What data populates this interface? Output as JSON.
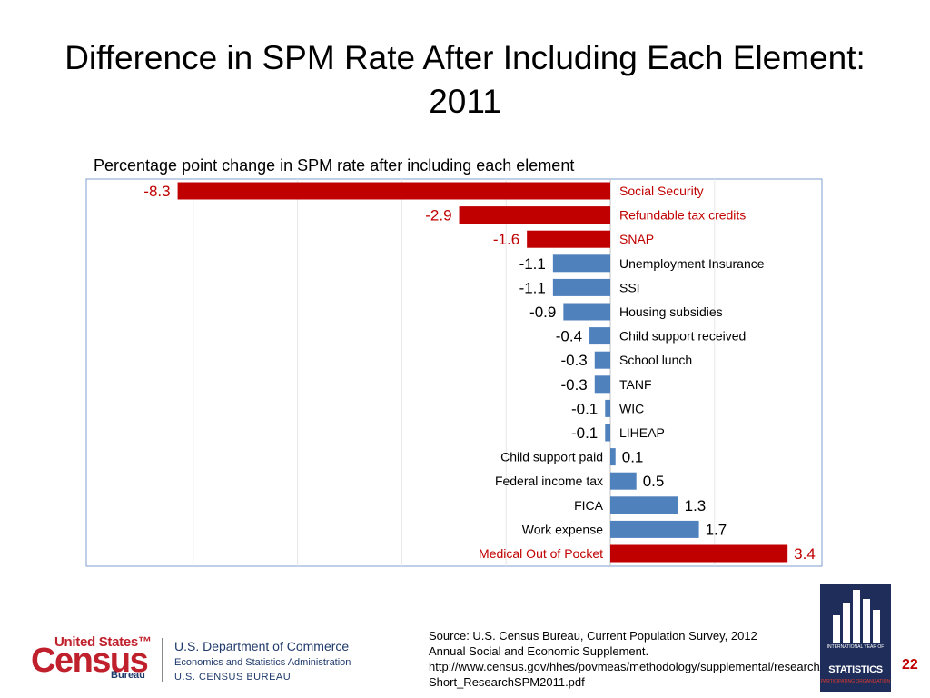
{
  "slide": {
    "title": "Difference in SPM Rate After Including Each Element:\n2011",
    "page_number": "22",
    "source_text": "Source: U.S. Census Bureau, Current Population Survey, 2012 Annual Social and Economic Supplement. http://www.census.gov/hhes/povmeas/methodology/supplemental/research/ Short_ResearchSPM2011.pdf"
  },
  "footer": {
    "census_top": "United States™",
    "census_big": "Census",
    "census_bureau": "Bureau",
    "dept_line1": "U.S. Department of Commerce",
    "dept_line2": "Economics and Statistics Administration",
    "dept_line3": "U.S. CENSUS BUREAU",
    "stats_logo_small": "INTERNATIONAL YEAR OF",
    "stats_logo_big": "STATISTICS",
    "stats_logo_participating": "PARTICIPATING ORGANIZATION"
  },
  "colors": {
    "highlight": "#c00000",
    "normal": "#4f81bd",
    "text": "#000000",
    "border": "#7f9fcf"
  },
  "chart_data": {
    "type": "bar",
    "orientation": "horizontal",
    "title": "Percentage point change in SPM rate after including each element",
    "xlim": [
      -8.5,
      3.6
    ],
    "grid": true,
    "categories": [
      "Social Security",
      "Refundable tax credits",
      "SNAP",
      "Unemployment Insurance",
      "SSI",
      "Housing subsidies",
      "Child support received",
      "School lunch",
      "TANF",
      "WIC",
      "LIHEAP",
      "Child support paid",
      "Federal income tax",
      "FICA",
      "Work expense",
      "Medical Out of Pocket"
    ],
    "values": [
      -8.3,
      -2.9,
      -1.6,
      -1.1,
      -1.1,
      -0.9,
      -0.4,
      -0.3,
      -0.3,
      -0.1,
      -0.1,
      0.1,
      0.5,
      1.3,
      1.7,
      3.4
    ],
    "value_labels": [
      "-8.3",
      "-2.9",
      "-1.6",
      "-1.1",
      "-1.1",
      "-0.9",
      "-0.4",
      "-0.3",
      "-0.3",
      "-0.1",
      "-0.1",
      "0.1",
      "0.5",
      "1.3",
      "1.7",
      "3.4"
    ],
    "highlighted": [
      "Social Security",
      "Refundable tax credits",
      "SNAP",
      "Medical Out of Pocket"
    ]
  }
}
